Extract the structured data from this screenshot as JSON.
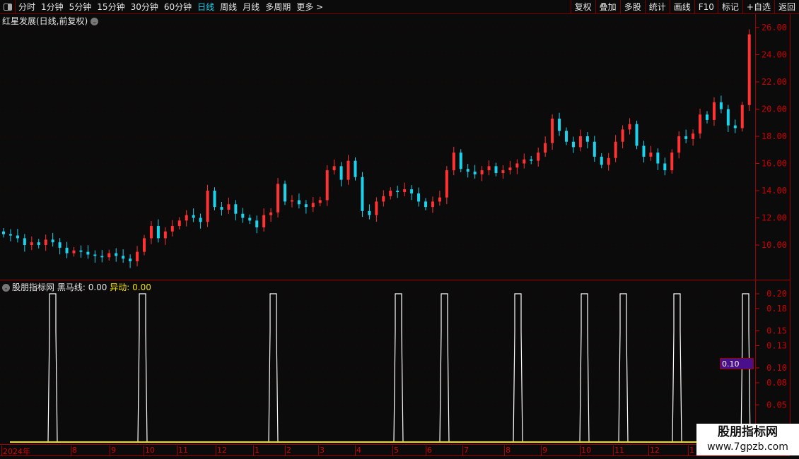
{
  "toolbar": {
    "periods": [
      "分时",
      "1分钟",
      "5分钟",
      "15分钟",
      "30分钟",
      "60分钟",
      "日线",
      "周线",
      "月线",
      "多周期",
      "更多 >"
    ],
    "active_period": "日线",
    "right_buttons": [
      "复权",
      "叠加",
      "多股",
      "统计",
      "画线",
      "F10",
      "标记",
      "+自选",
      "返回"
    ]
  },
  "header": {
    "title": "红星发展(日线,前复权)"
  },
  "indicator": {
    "name": "股朋指标网",
    "line1_label": "黑马线:",
    "line1_value": "0.00",
    "line2_label": "异动:",
    "line2_value": "0.00",
    "current_value": "0.10"
  },
  "colors": {
    "up": "#ff3333",
    "down": "#19d3ef",
    "axis": "#cc0000",
    "signal": "#ffffff",
    "baseline": "#f0e000"
  },
  "watermark": {
    "line1": "股朋指标网",
    "line2": "www.7gpzb.com"
  },
  "chart_data": [
    {
      "type": "candlestick",
      "ylim": [
        8.5,
        26.5
      ],
      "y_ticks": [
        "26.00",
        "24.00",
        "22.00",
        "20.00",
        "18.00",
        "16.00",
        "14.00",
        "12.00",
        "10.00"
      ],
      "closes": [
        10.8,
        10.7,
        10.5,
        10.0,
        10.2,
        10.0,
        10.4,
        10.2,
        9.8,
        9.4,
        9.6,
        9.5,
        9.3,
        9.2,
        9.1,
        9.4,
        9.2,
        9.0,
        8.8,
        9.5,
        10.5,
        11.4,
        10.5,
        11.0,
        11.4,
        11.8,
        12.2,
        12.0,
        11.7,
        14.0,
        12.8,
        12.6,
        13.0,
        12.3,
        12.0,
        11.8,
        11.3,
        12.2,
        12.4,
        14.5,
        13.2,
        13.3,
        13.0,
        12.8,
        13.1,
        13.3,
        15.5,
        15.8,
        14.8,
        16.2,
        15.0,
        12.5,
        12.2,
        13.2,
        13.6,
        14.0,
        13.9,
        14.1,
        13.8,
        13.2,
        12.8,
        13.2,
        13.5,
        15.5,
        16.8,
        15.6,
        15.4,
        15.2,
        15.5,
        15.8,
        15.3,
        15.5,
        15.7,
        16.0,
        16.3,
        16.2,
        16.8,
        17.5,
        19.3,
        18.4,
        17.6,
        17.2,
        18.0,
        17.6,
        16.5,
        15.9,
        16.4,
        17.6,
        18.5,
        18.9,
        17.3,
        16.5,
        16.8,
        16.0,
        15.5,
        16.8,
        18.0,
        17.8,
        18.2,
        19.6,
        19.2,
        20.5,
        20.0,
        18.8,
        18.6,
        20.3,
        25.5
      ],
      "x_ticks": [
        "2024年",
        "8",
        "9",
        "10",
        "11",
        "12",
        "1",
        "2",
        "3",
        "4",
        "5",
        "6",
        "7",
        "8",
        "9",
        "10",
        "11",
        "12",
        "1"
      ]
    },
    {
      "type": "line",
      "ylim": [
        0,
        0.2
      ],
      "y_ticks": [
        "0.20",
        "0.18",
        "0.15",
        "0.13",
        "0.10",
        "0.08",
        "0.05"
      ],
      "signal_value": 0.2,
      "signal_count": 10
    }
  ]
}
